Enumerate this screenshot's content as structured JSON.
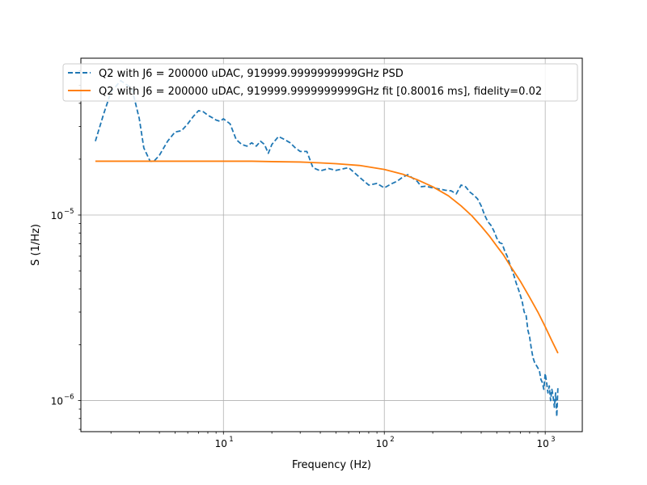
{
  "chart_data": {
    "type": "line",
    "title": "",
    "xlabel": "Frequency (Hz)",
    "ylabel": "S (1/Hz)",
    "xscale": "log",
    "yscale": "log",
    "xlim": [
      1.3,
      1700
    ],
    "ylim": [
      6.8e-07,
      7e-05
    ],
    "grid": true,
    "legend_position": "top",
    "x_ticks": [
      {
        "value": 10,
        "base": "10",
        "exp": "1"
      },
      {
        "value": 100,
        "base": "10",
        "exp": "2"
      },
      {
        "value": 1000,
        "base": "10",
        "exp": "3"
      }
    ],
    "y_ticks": [
      {
        "value": 1e-06,
        "base": "10",
        "exp": "−6"
      },
      {
        "value": 1e-05,
        "base": "10",
        "exp": "−5"
      }
    ],
    "series": [
      {
        "name": "Q2 with J6 = 200000 uDAC, 919999.9999999999GHz PSD",
        "style": "dashed",
        "color": "#1f77b4",
        "x": [
          1.6,
          1.8,
          2.0,
          2.3,
          2.7,
          3.0,
          3.2,
          3.5,
          3.7,
          4.0,
          4.5,
          5.0,
          5.5,
          6.0,
          6.5,
          7.0,
          7.5,
          8.0,
          8.5,
          9.0,
          9.5,
          10,
          11,
          12,
          13,
          14,
          15,
          16,
          17,
          18,
          19,
          20,
          22,
          24,
          26,
          28,
          30,
          33,
          36,
          40,
          45,
          50,
          60,
          70,
          80,
          90,
          100,
          110,
          120,
          130,
          140,
          150,
          160,
          170,
          180,
          200,
          220,
          240,
          260,
          280,
          300,
          320,
          340,
          360,
          380,
          400,
          420,
          440,
          460,
          480,
          500,
          520,
          540,
          560,
          580,
          600,
          620,
          640,
          660,
          680,
          700,
          720,
          740,
          760,
          780,
          800,
          820,
          840,
          860,
          880,
          900,
          920,
          940,
          960,
          980,
          1000,
          1020,
          1040,
          1060,
          1080,
          1100,
          1120,
          1140,
          1160,
          1180,
          1200
        ],
        "y": [
          2.5e-05,
          3.5e-05,
          4.6e-05,
          5.3e-05,
          4.8e-05,
          3.3e-05,
          2.3e-05,
          1.95e-05,
          1.95e-05,
          2.1e-05,
          2.5e-05,
          2.8e-05,
          2.85e-05,
          3.1e-05,
          3.4e-05,
          3.65e-05,
          3.6e-05,
          3.45e-05,
          3.35e-05,
          3.25e-05,
          3.2e-05,
          3.3e-05,
          3.1e-05,
          2.55e-05,
          2.4e-05,
          2.35e-05,
          2.45e-05,
          2.35e-05,
          2.5e-05,
          2.4e-05,
          2.15e-05,
          2.4e-05,
          2.65e-05,
          2.55e-05,
          2.45e-05,
          2.3e-05,
          2.2e-05,
          2.2e-05,
          1.8e-05,
          1.73e-05,
          1.78e-05,
          1.74e-05,
          1.8e-05,
          1.6e-05,
          1.45e-05,
          1.48e-05,
          1.4e-05,
          1.47e-05,
          1.52e-05,
          1.6e-05,
          1.65e-05,
          1.58e-05,
          1.52e-05,
          1.42e-05,
          1.43e-05,
          1.4e-05,
          1.38e-05,
          1.36e-05,
          1.35e-05,
          1.3e-05,
          1.45e-05,
          1.42e-05,
          1.33e-05,
          1.28e-05,
          1.22e-05,
          1.12e-05,
          1e-05,
          9.2e-06,
          8.8e-06,
          8.2e-06,
          7.5e-06,
          7.1e-06,
          7e-06,
          6.4e-06,
          6e-06,
          5.5e-06,
          5.1e-06,
          4.7e-06,
          4.3e-06,
          4e-06,
          3.7e-06,
          3.4e-06,
          3e-06,
          2.9e-06,
          2.4e-06,
          2.2e-06,
          1.9e-06,
          1.7e-06,
          1.6e-06,
          1.55e-06,
          1.5e-06,
          1.45e-06,
          1.3e-06,
          1.25e-06,
          1.15e-06,
          1.4e-06,
          1.25e-06,
          1.1e-06,
          1.2e-06,
          1e-06,
          1.15e-06,
          1.05e-06,
          9.2e-07,
          1.1e-06,
          8.2e-07,
          1.2e-06
        ]
      },
      {
        "name": "Q2 with J6 = 200000 uDAC, 919999.9999999999GHz fit [0.80016 ms], fidelity=0.02",
        "style": "solid",
        "color": "#ff7f0e",
        "x": [
          1.6,
          2,
          3,
          5,
          8,
          10,
          15,
          20,
          30,
          40,
          50,
          70,
          100,
          130,
          160,
          200,
          250,
          300,
          350,
          400,
          450,
          500,
          550,
          600,
          700,
          800,
          900,
          1000,
          1100,
          1200
        ],
        "y": [
          1.95e-05,
          1.95e-05,
          1.95e-05,
          1.95e-05,
          1.95e-05,
          1.95e-05,
          1.95e-05,
          1.94e-05,
          1.93e-05,
          1.91e-05,
          1.89e-05,
          1.85e-05,
          1.76e-05,
          1.66e-05,
          1.55e-05,
          1.42e-05,
          1.27e-05,
          1.12e-05,
          9.9e-06,
          8.7e-06,
          7.7e-06,
          6.8e-06,
          6.1e-06,
          5.4e-06,
          4.4e-06,
          3.6e-06,
          3e-06,
          2.5e-06,
          2.1e-06,
          1.8e-06
        ]
      }
    ]
  }
}
